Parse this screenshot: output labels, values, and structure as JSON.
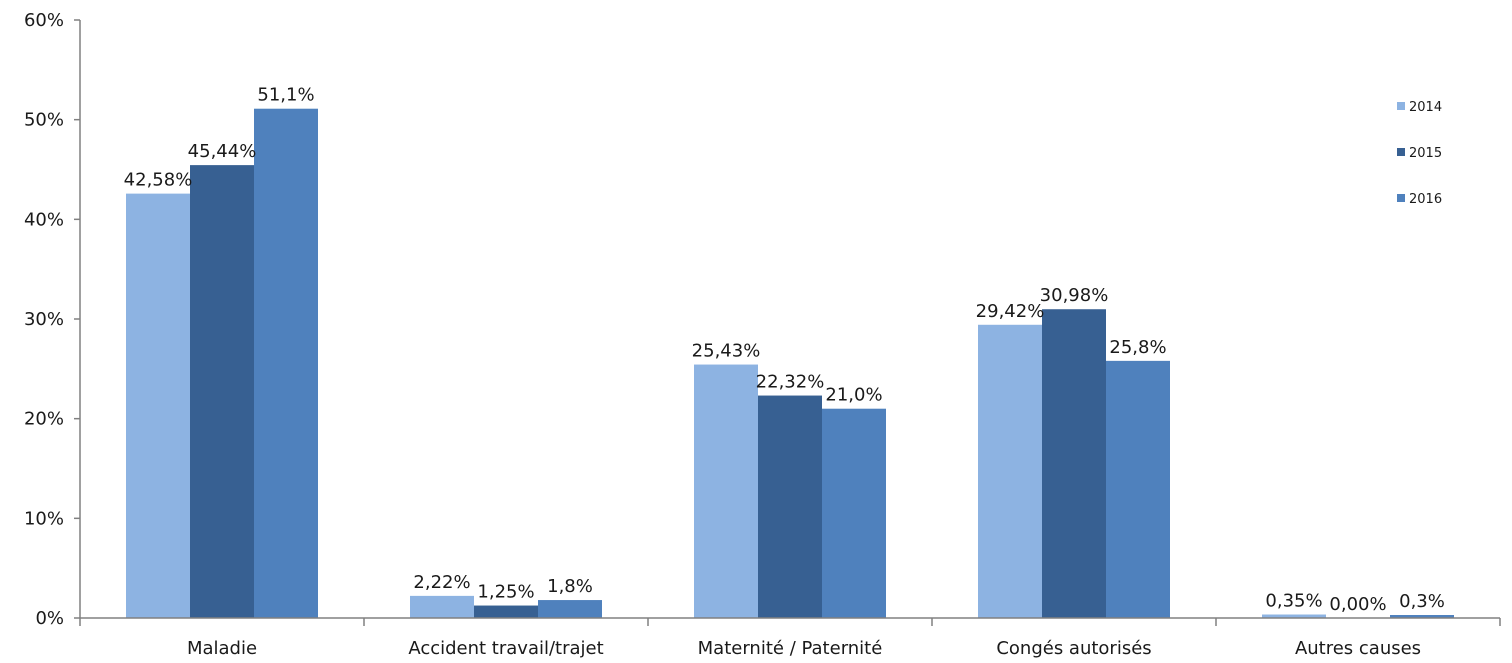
{
  "chart_data": {
    "type": "bar",
    "title": "",
    "xlabel": "",
    "ylabel": "",
    "categories": [
      "Maladie",
      "Accident travail/trajet",
      "Maternité / Paternité",
      "Congés autorisés",
      "Autres causes"
    ],
    "series": [
      {
        "name": "2014",
        "color": "#8db3e2",
        "values": [
          42.58,
          2.22,
          25.43,
          29.42,
          0.35
        ],
        "labels": [
          "42,58%",
          "2,22%",
          "25,43%",
          "29,42%",
          "0,35%"
        ]
      },
      {
        "name": "2015",
        "color": "#376092",
        "values": [
          45.44,
          1.25,
          22.32,
          30.98,
          0.0
        ],
        "labels": [
          "45,44%",
          "1,25%",
          "22,32%",
          "30,98%",
          "0,00%"
        ]
      },
      {
        "name": "2016",
        "color": "#4f81bd",
        "values": [
          51.1,
          1.8,
          21.0,
          25.8,
          0.3
        ],
        "labels": [
          "51,1%",
          "1,8%",
          "21,0%",
          "25,8%",
          "0,3%"
        ]
      }
    ],
    "ylim": [
      0,
      60
    ],
    "yticks": [
      0,
      10,
      20,
      30,
      40,
      50,
      60
    ],
    "ytick_labels": [
      "0%",
      "10%",
      "20%",
      "30%",
      "40%",
      "50%",
      "60%"
    ],
    "grid": false,
    "legend_position": "right"
  }
}
